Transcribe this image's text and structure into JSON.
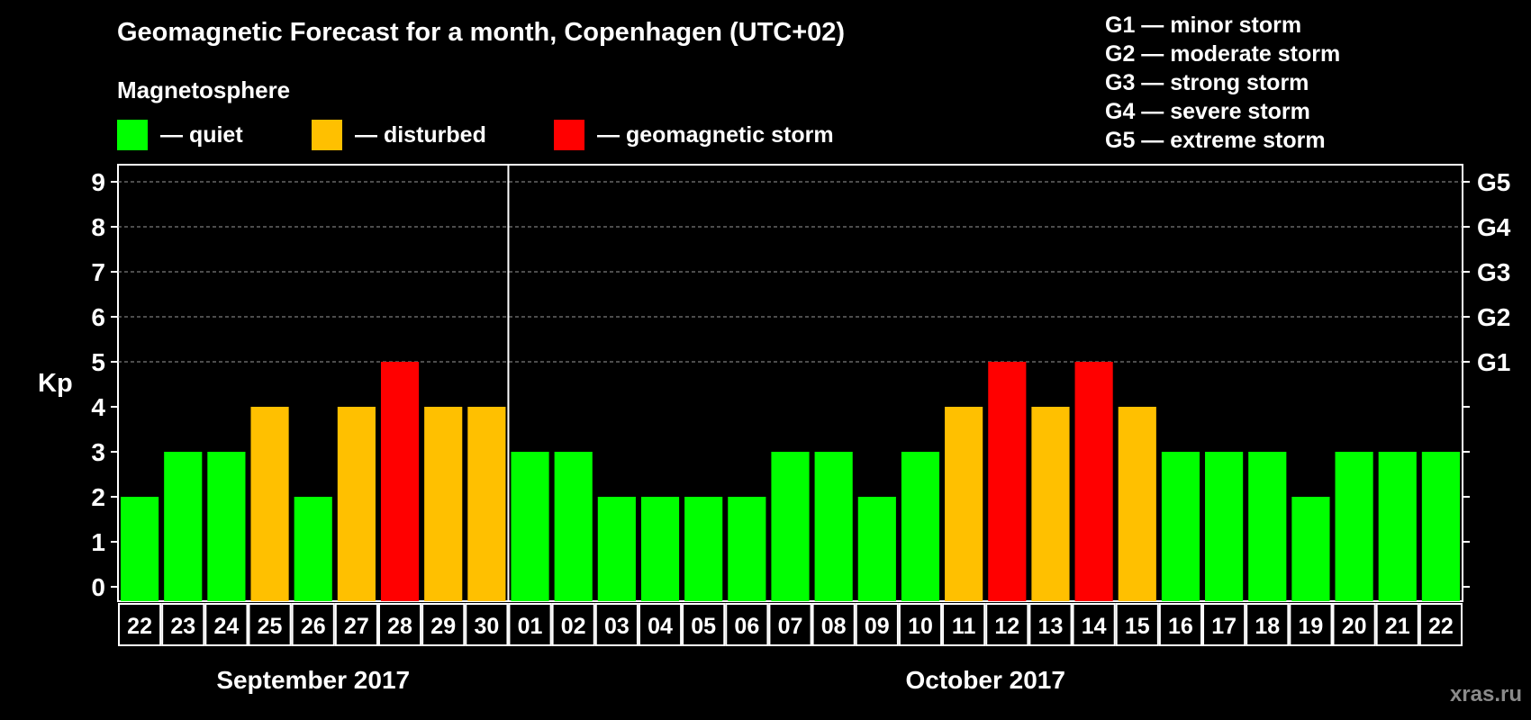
{
  "title": "Geomagnetic Forecast for a month, Copenhagen (UTC+02)",
  "subtitle": "Magnetosphere",
  "legend": [
    {
      "label": "— quiet",
      "color": "#00ff00"
    },
    {
      "label": "— disturbed",
      "color": "#ffc000"
    },
    {
      "label": "— geomagnetic storm",
      "color": "#ff0000"
    }
  ],
  "g_levels": [
    "G1 — minor storm",
    "G2 — moderate storm",
    "G3 — strong storm",
    "G4 — severe storm",
    "G5 — extreme storm"
  ],
  "watermark": "xras.ru",
  "chart_data": {
    "type": "bar",
    "ylabel": "Kp",
    "ylim": [
      0,
      9
    ],
    "yticks": [
      0,
      1,
      2,
      3,
      4,
      5,
      6,
      7,
      8,
      9
    ],
    "right_axis": [
      {
        "value": 5,
        "label": "G1"
      },
      {
        "value": 6,
        "label": "G2"
      },
      {
        "value": 7,
        "label": "G3"
      },
      {
        "value": 8,
        "label": "G4"
      },
      {
        "value": 9,
        "label": "G5"
      }
    ],
    "grid": "dashed horizontal at Kp 5–9",
    "categories": [
      "22",
      "23",
      "24",
      "25",
      "26",
      "27",
      "28",
      "29",
      "30",
      "01",
      "02",
      "03",
      "04",
      "05",
      "06",
      "07",
      "08",
      "09",
      "10",
      "11",
      "12",
      "13",
      "14",
      "15",
      "16",
      "17",
      "18",
      "19",
      "20",
      "21",
      "22"
    ],
    "values": [
      2,
      3,
      3,
      4,
      2,
      4,
      5,
      4,
      4,
      3,
      3,
      2,
      2,
      2,
      2,
      3,
      3,
      2,
      3,
      4,
      5,
      4,
      5,
      4,
      3,
      3,
      3,
      2,
      3,
      3,
      3
    ],
    "color_rule": {
      "quiet": "#00ff00",
      "disturbed": "#ffc000",
      "storm": "#ff0000"
    },
    "months": [
      {
        "label": "September 2017",
        "start": 0,
        "count": 9
      },
      {
        "label": "October 2017",
        "start": 9,
        "count": 22
      }
    ]
  }
}
